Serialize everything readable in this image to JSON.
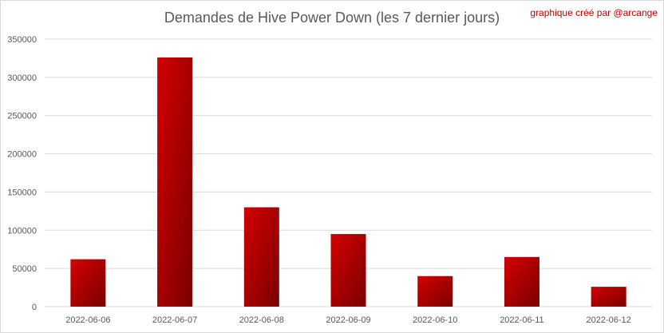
{
  "chart_data": {
    "type": "bar",
    "title": "Demandes de Hive Power Down (les 7 dernier jours)",
    "credit": "graphique créé par @arcange",
    "categories": [
      "2022-06-06",
      "2022-06-07",
      "2022-06-08",
      "2022-06-09",
      "2022-06-10",
      "2022-06-11",
      "2022-06-12"
    ],
    "values": [
      62000,
      326000,
      130000,
      95000,
      40000,
      65000,
      26000
    ],
    "xlabel": "",
    "ylabel": "",
    "ylim": [
      0,
      350000
    ],
    "yticks": [
      "0",
      "50000",
      "100000",
      "150000",
      "200000",
      "250000",
      "300000",
      "350000"
    ],
    "grid": true,
    "legend": "none",
    "colors": {
      "bar_light": "#d40000",
      "bar_dark": "#7a0000",
      "grid": "#d9d9d9",
      "credit": "#c00000"
    }
  }
}
